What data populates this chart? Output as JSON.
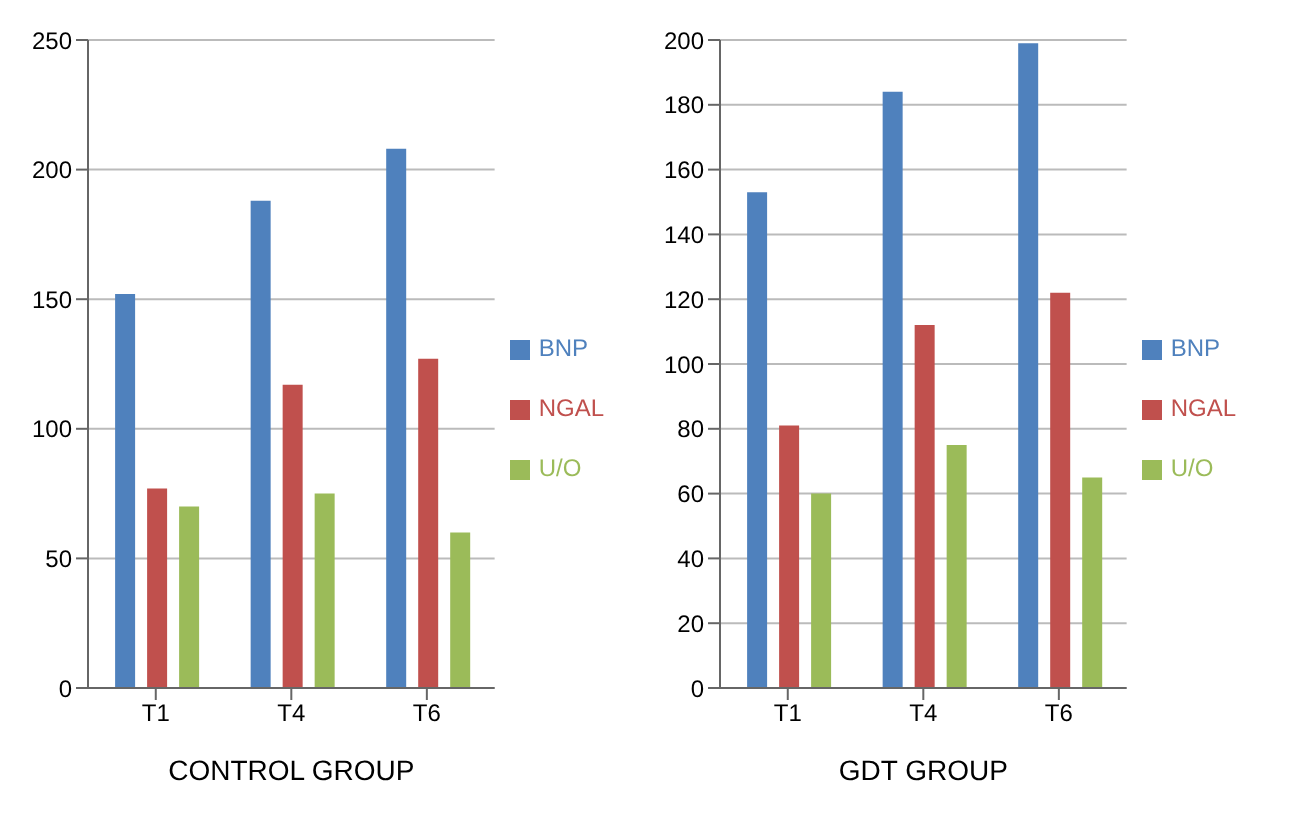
{
  "chart_data": [
    {
      "type": "bar",
      "xlabel": "CONTROL GROUP",
      "categories": [
        "T1",
        "T4",
        "T6"
      ],
      "series": [
        {
          "name": "BNP",
          "color": "#4f81bd",
          "values": [
            152,
            188,
            208
          ]
        },
        {
          "name": "NGAL",
          "color": "#c0504d",
          "values": [
            77,
            117,
            127
          ]
        },
        {
          "name": "U/O",
          "color": "#9bbb59",
          "values": [
            70,
            75,
            60
          ]
        }
      ],
      "ylim": [
        0,
        250
      ],
      "yticks": [
        0,
        50,
        100,
        150,
        200,
        250
      ],
      "grid": "y",
      "legend": "right"
    },
    {
      "type": "bar",
      "xlabel": "GDT GROUP",
      "categories": [
        "T1",
        "T4",
        "T6"
      ],
      "series": [
        {
          "name": "BNP",
          "color": "#4f81bd",
          "values": [
            153,
            184,
            199
          ]
        },
        {
          "name": "NGAL",
          "color": "#c0504d",
          "values": [
            81,
            112,
            122
          ]
        },
        {
          "name": "U/O",
          "color": "#9bbb59",
          "values": [
            60,
            75,
            65
          ]
        }
      ],
      "ylim": [
        0,
        200
      ],
      "yticks": [
        0,
        20,
        40,
        60,
        80,
        100,
        120,
        140,
        160,
        180,
        200
      ],
      "grid": "y",
      "legend": "right"
    }
  ]
}
